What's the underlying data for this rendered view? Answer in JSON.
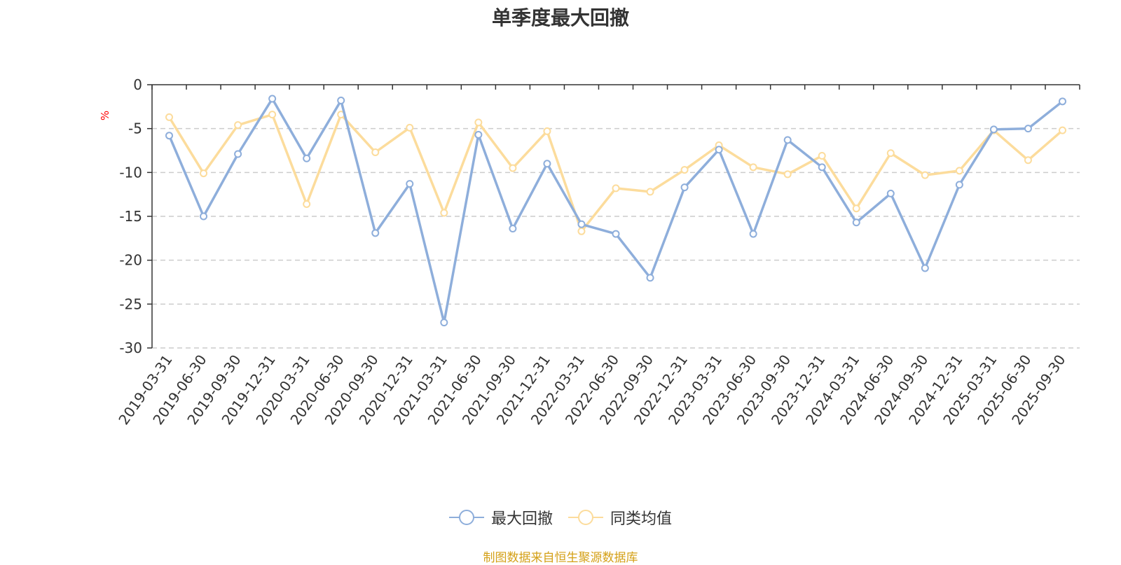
{
  "chart_data": {
    "type": "line",
    "title": "单季度最大回撤",
    "ylabel": "%",
    "ylim": [
      -30,
      0
    ],
    "yticks": [
      0,
      -5,
      -10,
      -15,
      -20,
      -25,
      -30
    ],
    "grid": true,
    "legend_position": "bottom-center",
    "categories": [
      "2019-03-31",
      "2019-06-30",
      "2019-09-30",
      "2019-12-31",
      "2020-03-31",
      "2020-06-30",
      "2020-09-30",
      "2020-12-31",
      "2021-03-31",
      "2021-06-30",
      "2021-09-30",
      "2021-12-31",
      "2022-03-31",
      "2022-06-30",
      "2022-09-30",
      "2022-12-31",
      "2023-03-31",
      "2023-06-30",
      "2023-09-30",
      "2023-12-31",
      "2024-03-31",
      "2024-06-30",
      "2024-09-30",
      "2024-12-31",
      "2025-03-31",
      "2025-06-30",
      "2025-09-30"
    ],
    "series": [
      {
        "name": "最大回撤",
        "color": "#8eaedb",
        "values": [
          -5.8,
          -15.0,
          -7.9,
          -1.6,
          -8.4,
          -1.8,
          -16.9,
          -11.3,
          -27.1,
          -5.7,
          -16.4,
          -9.0,
          -15.9,
          -17.0,
          -22.0,
          -11.7,
          -7.4,
          -17.0,
          -6.3,
          -9.4,
          -15.7,
          -12.4,
          -20.9,
          -11.4,
          -5.1,
          -5.0,
          -1.9
        ]
      },
      {
        "name": "同类均值",
        "color": "#fcdc9c",
        "values": [
          -3.7,
          -10.1,
          -4.6,
          -3.4,
          -13.6,
          -3.4,
          -7.7,
          -4.9,
          -14.6,
          -4.3,
          -9.5,
          -5.3,
          -16.7,
          -11.8,
          -12.2,
          -9.7,
          -6.9,
          -9.4,
          -10.2,
          -8.1,
          -14.1,
          -7.8,
          -10.3,
          -9.8,
          -5.2,
          -8.6,
          -5.2
        ]
      }
    ]
  },
  "source_note": "制图数据来自恒生聚源数据库"
}
